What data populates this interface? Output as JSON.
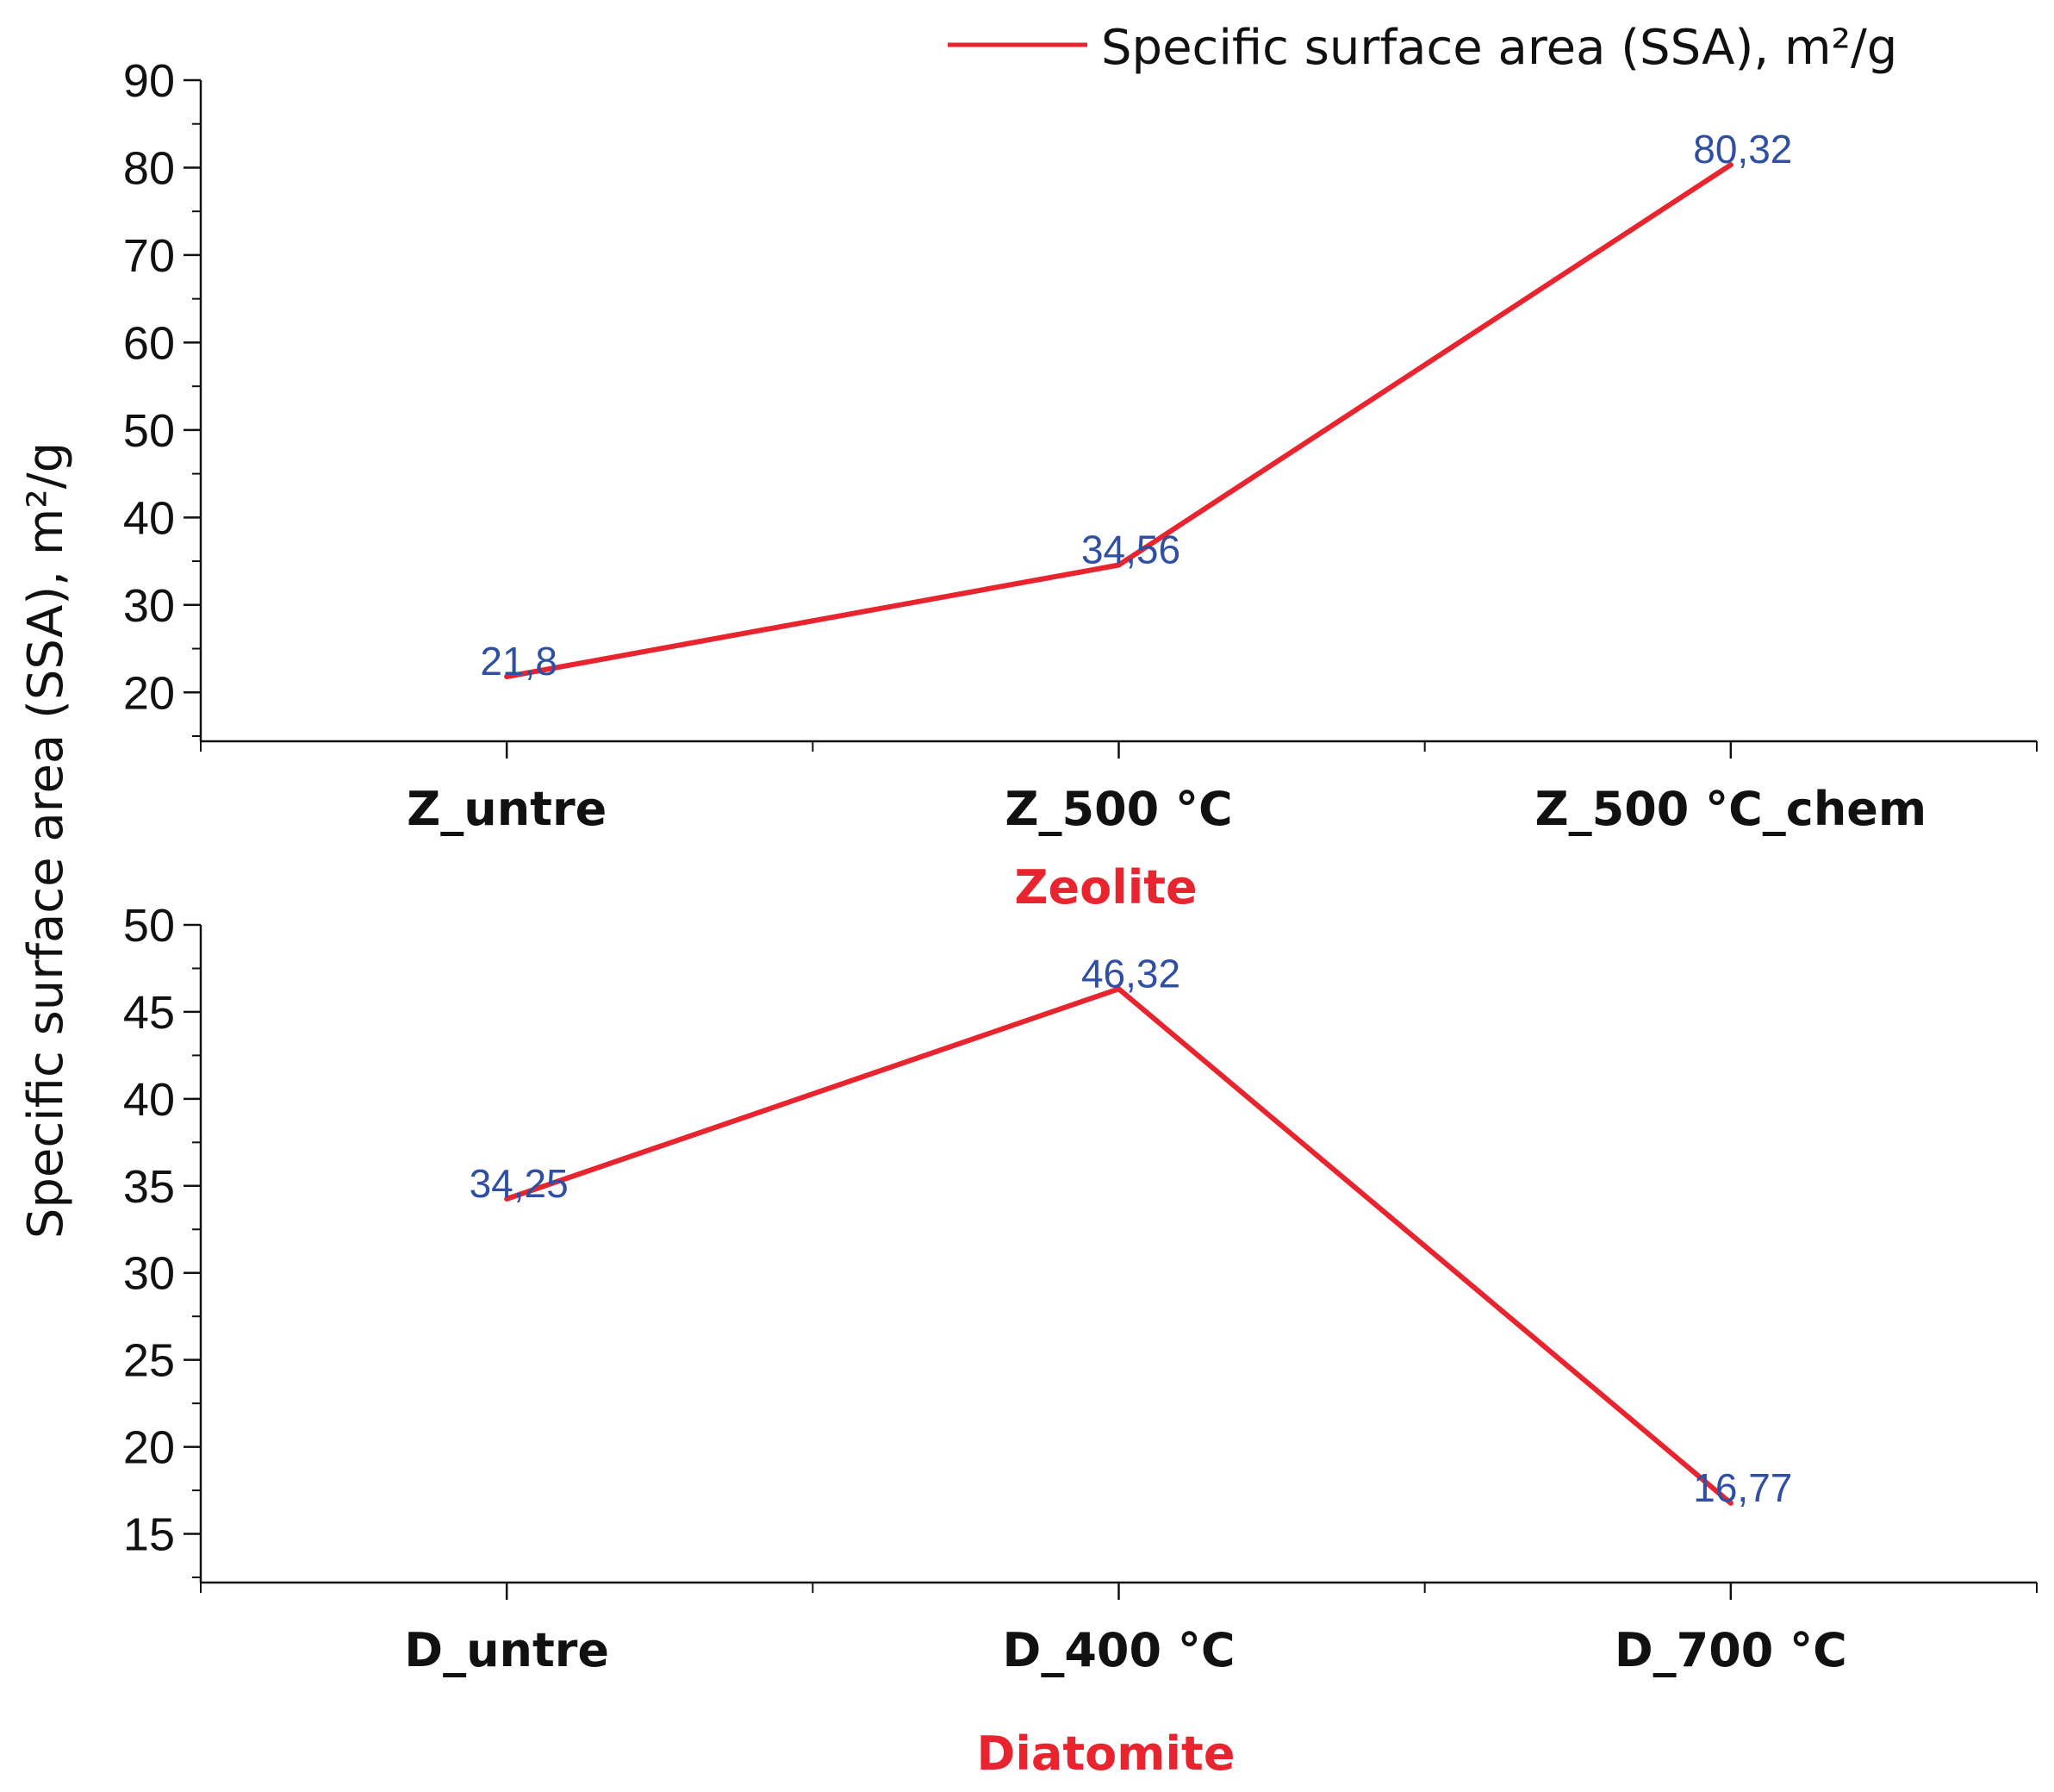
{
  "legend": {
    "label": "Specific surface area (SSA), m²/g"
  },
  "y_axis_title": "Specific surface area (SSA), m²/g",
  "colors": {
    "line": "#e8242e",
    "data_label": "#2e4fa3",
    "panel_title": "#e8242e",
    "axis": "#111111"
  },
  "chart_data": [
    {
      "type": "line",
      "title": "Zeolite",
      "categories": [
        "Z_untre",
        "Z_500 °C",
        "Z_500 °C_chem"
      ],
      "series": [
        {
          "name": "Specific surface area (SSA), m²/g",
          "values": [
            21.8,
            34.56,
            80.32
          ]
        }
      ],
      "data_labels": [
        "21,8",
        "34,56",
        "80,32"
      ],
      "ylim": [
        15,
        90
      ],
      "yticks": [
        20,
        30,
        40,
        50,
        60,
        70,
        80,
        90
      ],
      "ytick_labels": [
        "20",
        "30",
        "40",
        "50",
        "60",
        "70",
        "80",
        "90"
      ],
      "minor_step": 5,
      "xlabel": "Zeolite",
      "ylabel": "Specific surface area (SSA), m²/g"
    },
    {
      "type": "line",
      "title": "Diatomite",
      "categories": [
        "D_untre",
        "D_400 °C",
        "D_700 °C"
      ],
      "series": [
        {
          "name": "Specific surface area (SSA), m²/g",
          "values": [
            34.25,
            46.32,
            16.77
          ]
        }
      ],
      "data_labels": [
        "34,25",
        "46,32",
        "16,77"
      ],
      "ylim": [
        12.5,
        50
      ],
      "yticks": [
        15,
        20,
        25,
        30,
        35,
        40,
        45,
        50
      ],
      "ytick_labels": [
        "15",
        "20",
        "25",
        "30",
        "35",
        "40",
        "45",
        "50"
      ],
      "minor_step": 2.5,
      "xlabel": "Diatomite",
      "ylabel": "Specific surface area (SSA), m²/g"
    }
  ]
}
